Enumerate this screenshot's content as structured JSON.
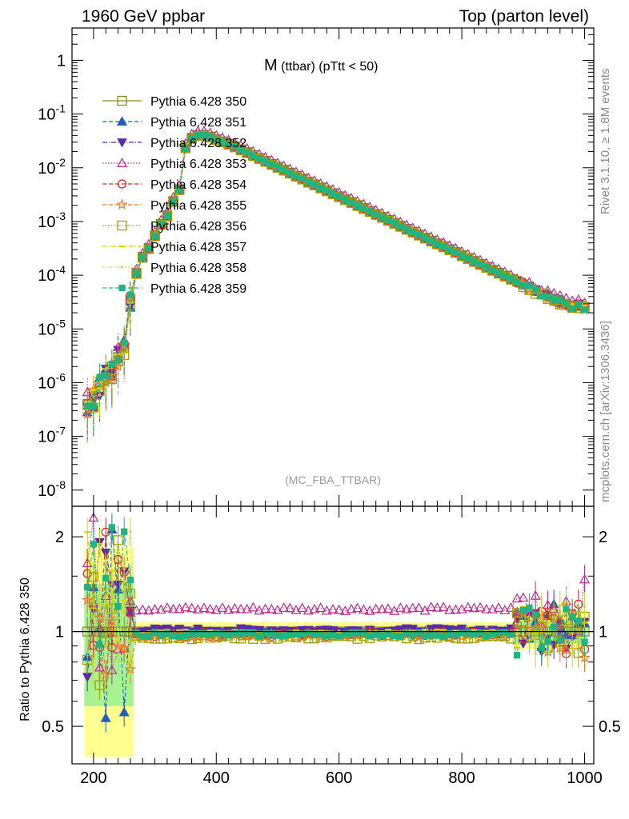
{
  "header": {
    "left": "1960 GeV ppbar",
    "right": "Top (parton level)"
  },
  "side_text": {
    "rivet": "Rivet 3.1.10, ≥ 1.8M events",
    "mcplots": "mcplots.cern.ch [arXiv:1306.3436]"
  },
  "colors": {
    "s350": "#8c8c1e",
    "s351": "#1f5fb4",
    "s352": "#5a2aa8",
    "s353": "#c0288c",
    "s354": "#e02828",
    "s355": "#f07828",
    "s356": "#a0a000",
    "s357": "#d4d400",
    "s358": "#c8d840",
    "s359": "#20b480",
    "band_yellow": "#ffff90",
    "band_green": "#90ee90"
  },
  "chart_data": [
    {
      "type": "line",
      "panel": "main",
      "title": "M (ttbar) (pTtt < 50)",
      "title_main": "M",
      "title_sub": "(ttbar) (pTtt < 50)",
      "annotation": "(MC_FBA_TTBAR)",
      "yscale": "log",
      "xlim": [
        165,
        1015
      ],
      "ylim": [
        5e-09,
        4
      ],
      "ytick_labels": [
        "10^-8",
        "10^-7",
        "10^-6",
        "10^-5",
        "10^-4",
        "10^-3",
        "10^-2",
        "10^-1",
        "1"
      ],
      "legend_position": "top-left",
      "x": [
        190,
        200,
        210,
        220,
        230,
        240,
        250,
        260,
        270,
        280,
        290,
        300,
        310,
        320,
        330,
        340,
        350,
        360,
        370,
        380,
        390,
        400,
        410,
        420,
        430,
        440,
        450,
        460,
        470,
        480,
        490,
        500,
        510,
        520,
        530,
        540,
        550,
        560,
        570,
        580,
        590,
        600,
        610,
        620,
        630,
        640,
        650,
        660,
        670,
        680,
        690,
        700,
        710,
        720,
        730,
        740,
        750,
        760,
        770,
        780,
        790,
        800,
        810,
        820,
        830,
        840,
        850,
        860,
        870,
        880,
        890,
        900,
        910,
        920,
        930,
        940,
        950,
        960,
        970,
        980,
        990,
        1000
      ],
      "reference_values": [
        4e-07,
        6e-07,
        9e-07,
        1.3e-06,
        2e-06,
        3e-06,
        4.5e-06,
        3.5e-05,
        0.00011,
        0.00022,
        0.00032,
        0.00055,
        0.0009,
        0.0013,
        0.0024,
        0.004,
        0.024,
        0.036,
        0.041,
        0.041,
        0.038,
        0.034,
        0.031,
        0.028,
        0.025,
        0.022,
        0.0195,
        0.0172,
        0.0152,
        0.0134,
        0.0118,
        0.0104,
        0.0092,
        0.0081,
        0.0071,
        0.0063,
        0.0055,
        0.0049,
        0.0043,
        0.0038,
        0.00335,
        0.00295,
        0.0026,
        0.0023,
        0.00202,
        0.00178,
        0.00157,
        0.00138,
        0.00122,
        0.00107,
        0.000945,
        0.00083,
        0.00073,
        0.000645,
        0.00057,
        0.0005,
        0.00044,
        0.00039,
        0.000345,
        0.000305,
        0.00027,
        0.000235,
        0.000208,
        0.000184,
        0.000162,
        0.000143,
        0.000126,
        0.000111,
        9.8e-05,
        8.6e-05,
        7.6e-05,
        6.7e-05,
        5.9e-05,
        5.2e-05,
        4.6e-05,
        4.1e-05,
        3.6e-05,
        3.2e-05,
        2.9e-05,
        2.6e-05,
        2.8e-05,
        2.5e-05
      ],
      "series": [
        {
          "name": "Pythia 6.428 350",
          "marker": "open-square",
          "line": "solid"
        },
        {
          "name": "Pythia 6.428 351",
          "marker": "filled-triangle-up",
          "line": "dashed"
        },
        {
          "name": "Pythia 6.428 352",
          "marker": "filled-triangle-down",
          "line": "dash-dot"
        },
        {
          "name": "Pythia 6.428 353",
          "marker": "open-triangle-up",
          "line": "dotted"
        },
        {
          "name": "Pythia 6.428 354",
          "marker": "open-circle",
          "line": "dashed"
        },
        {
          "name": "Pythia 6.428 355",
          "marker": "open-star",
          "line": "dashed"
        },
        {
          "name": "Pythia 6.428 356",
          "marker": "open-square",
          "line": "dotted"
        },
        {
          "name": "Pythia 6.428 357",
          "marker": "small-dash",
          "line": "dash-dot"
        },
        {
          "name": "Pythia 6.428 358",
          "marker": "small-dot",
          "line": "dotted"
        },
        {
          "name": "Pythia 6.428 359",
          "marker": "filled-square",
          "line": "dashed"
        }
      ]
    },
    {
      "type": "line",
      "panel": "ratio",
      "ylabel": "Ratio to Pythia 6.428 350",
      "xlim": [
        165,
        1015
      ],
      "ylim": [
        0.38,
        2.5
      ],
      "yscale": "log",
      "yticks": [
        0.5,
        1,
        2
      ],
      "ytick_labels": [
        "0.5",
        "1",
        "2"
      ],
      "xticks": [
        200,
        400,
        600,
        800,
        1000
      ],
      "xtick_labels": [
        "200",
        "400",
        "600",
        "800",
        "1000"
      ],
      "ratio_levels": {
        "Pythia 6.428 350": 1.0,
        "Pythia 6.428 351": 0.99,
        "Pythia 6.428 352": 1.01,
        "Pythia 6.428 353": 1.18,
        "Pythia 6.428 354": 0.98,
        "Pythia 6.428 355": 0.97,
        "Pythia 6.428 356": 0.96,
        "Pythia 6.428 357": 1.0,
        "Pythia 6.428 358": 0.99,
        "Pythia 6.428 359": 0.98
      }
    }
  ]
}
